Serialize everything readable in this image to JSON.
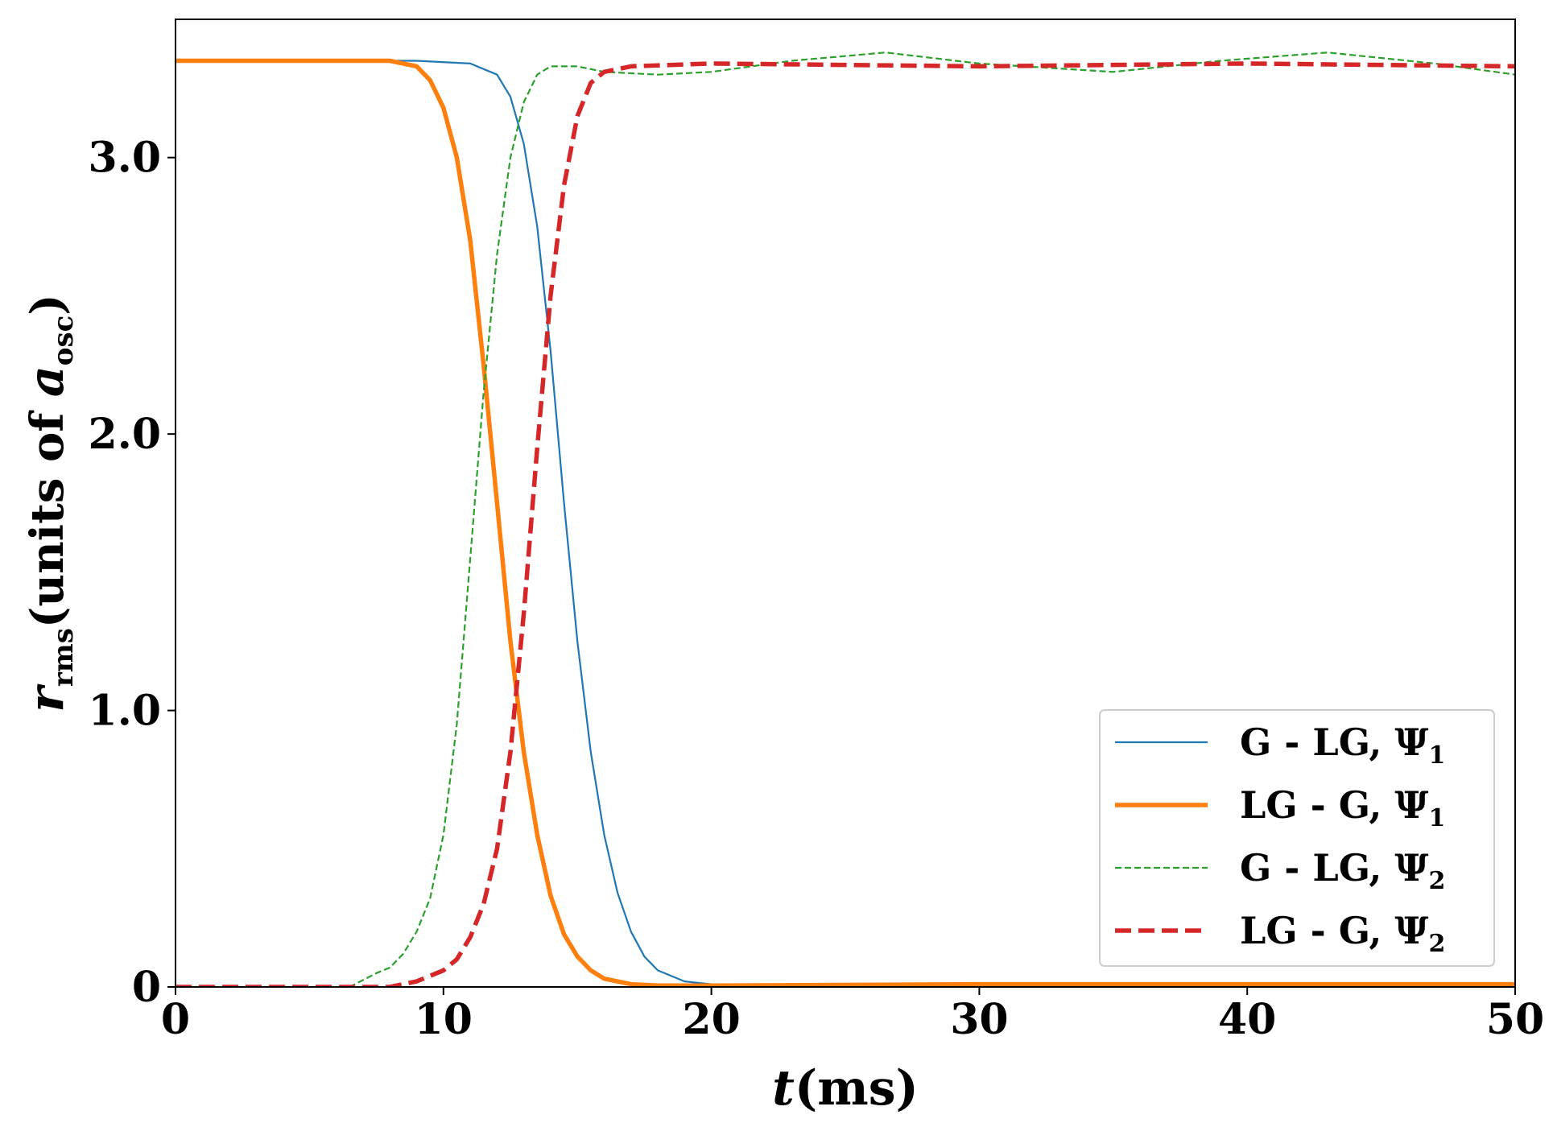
{
  "chart_data": {
    "type": "line",
    "title": "",
    "xlabel": "t(ms)",
    "ylabel": "r_rms(units of a_osc)",
    "xlabel_parts": {
      "var": "t",
      "unit": "(ms)"
    },
    "ylabel_parts": {
      "var": "r",
      "sub": "rms",
      "pre": "(units of ",
      "avar": "a",
      "asub": "osc",
      "post": ")"
    },
    "xlim": [
      0,
      50
    ],
    "ylim": [
      0,
      3.5
    ],
    "xticks": [
      0,
      10,
      20,
      30,
      40,
      50
    ],
    "xtick_labels": [
      "0",
      "10",
      "20",
      "30",
      "40",
      "50"
    ],
    "yticks": [
      0,
      1.0,
      2.0,
      3.0
    ],
    "ytick_labels": [
      "0",
      "1.0",
      "2.0",
      "3.0"
    ],
    "grid": false,
    "legend_position": "lower-right",
    "series": [
      {
        "name": "G - LG, Ψ1",
        "label_main": "G - LG, Ψ",
        "label_sub": "1",
        "color": "#1f77b4",
        "style": "solid-thin",
        "x": [
          0,
          9,
          11,
          12,
          12.5,
          13,
          13.5,
          14,
          14.5,
          15,
          15.5,
          16,
          16.5,
          17,
          17.5,
          18,
          19,
          20,
          22,
          30,
          40,
          50
        ],
        "y": [
          3.35,
          3.35,
          3.34,
          3.3,
          3.22,
          3.05,
          2.75,
          2.3,
          1.75,
          1.25,
          0.85,
          0.55,
          0.34,
          0.2,
          0.11,
          0.06,
          0.02,
          0.01,
          0.01,
          0.01,
          0.01,
          0.01
        ]
      },
      {
        "name": "LG - G, Ψ1",
        "label_main": "LG - G, Ψ",
        "label_sub": "1",
        "color": "#ff7f0e",
        "style": "solid-thick",
        "x": [
          0,
          8,
          9,
          9.5,
          10,
          10.5,
          11,
          11.5,
          12,
          12.5,
          13,
          13.5,
          14,
          14.5,
          15,
          15.5,
          16,
          17,
          18,
          20,
          30,
          40,
          50
        ],
        "y": [
          3.35,
          3.35,
          3.33,
          3.28,
          3.18,
          3.0,
          2.7,
          2.25,
          1.75,
          1.25,
          0.85,
          0.55,
          0.33,
          0.19,
          0.11,
          0.06,
          0.03,
          0.01,
          0.005,
          0.005,
          0.01,
          0.01,
          0.01
        ]
      },
      {
        "name": "G - LG, Ψ2",
        "label_main": "G - LG, Ψ",
        "label_sub": "2",
        "color": "#2ca02c",
        "style": "dashed-thin",
        "x": [
          0,
          6.5,
          7.5,
          8,
          8.5,
          9,
          9.5,
          10,
          10.5,
          11,
          11.5,
          12,
          12.5,
          13,
          13.5,
          14,
          14.5,
          15,
          16,
          18,
          20,
          23,
          26.5,
          30,
          35,
          39,
          43,
          47,
          50
        ],
        "y": [
          0,
          0,
          0.05,
          0.07,
          0.12,
          0.2,
          0.32,
          0.55,
          0.95,
          1.55,
          2.15,
          2.65,
          3.0,
          3.2,
          3.3,
          3.33,
          3.33,
          3.33,
          3.31,
          3.3,
          3.31,
          3.35,
          3.38,
          3.34,
          3.31,
          3.35,
          3.38,
          3.34,
          3.3
        ]
      },
      {
        "name": "LG - G, Ψ2",
        "label_main": "LG - G, Ψ",
        "label_sub": "2",
        "color": "#d62728",
        "style": "dashed-thick",
        "x": [
          0,
          8,
          9,
          10,
          10.5,
          11,
          11.5,
          12,
          12.5,
          13,
          13.5,
          14,
          14.5,
          15,
          15.5,
          16,
          17,
          20,
          30,
          40,
          50
        ],
        "y": [
          0,
          0,
          0.02,
          0.06,
          0.1,
          0.18,
          0.3,
          0.5,
          0.85,
          1.35,
          1.95,
          2.5,
          2.9,
          3.15,
          3.27,
          3.31,
          3.33,
          3.34,
          3.33,
          3.34,
          3.33
        ]
      }
    ]
  }
}
